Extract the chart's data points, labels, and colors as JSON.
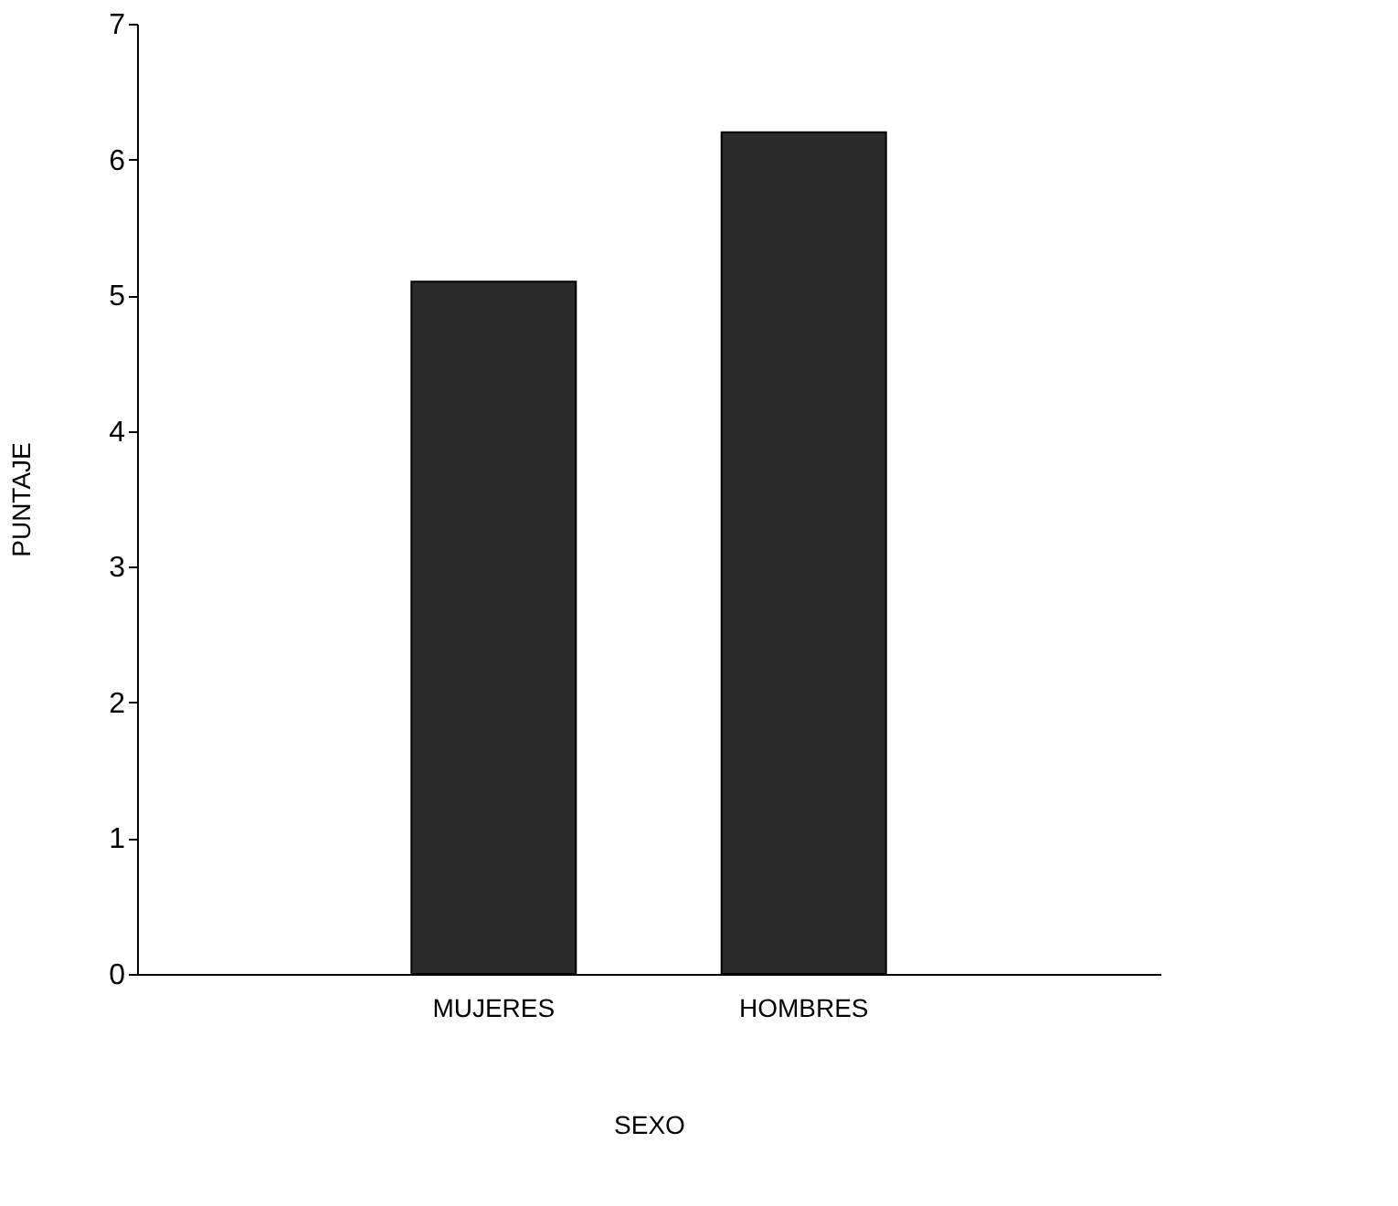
{
  "chart_data": {
    "type": "bar",
    "xlabel": "SEXO",
    "ylabel": "PUNTAJE",
    "categories": [
      "MUJERES",
      "HOMBRES"
    ],
    "values": [
      5.1,
      6.2
    ],
    "color": "#2a2a2a",
    "ylim": [
      0,
      7
    ],
    "yticks": [
      0,
      1,
      2,
      3,
      4,
      5,
      6,
      7
    ],
    "grid": false
  }
}
